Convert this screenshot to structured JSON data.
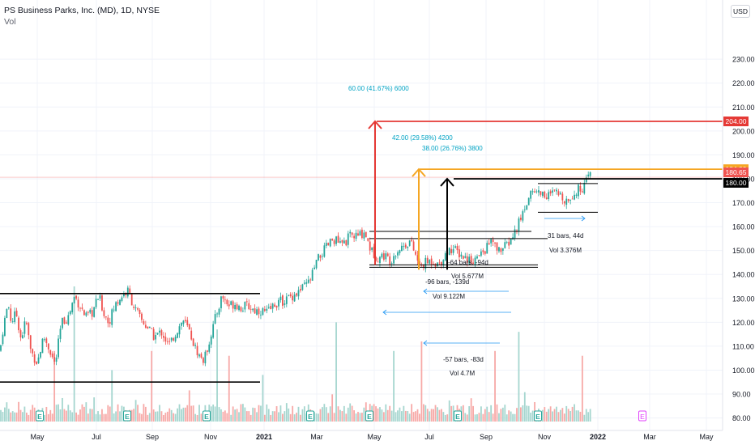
{
  "header": {
    "title": "PS Business Parks, Inc. (MD), 1D, NYSE",
    "indicator": "Vol"
  },
  "currency": "USD",
  "colors": {
    "up": "#26a69a",
    "down": "#ef5350",
    "upVol": "#a5d6cf",
    "downVol": "#f7a9a7",
    "red": "#e53935",
    "orange": "#f5a623",
    "black": "#000000",
    "blue": "#2962ff",
    "cyan": "#00a3c4",
    "earnings": "#26a69a",
    "earningsFuture": "#e040fb"
  },
  "chart_data": {
    "type": "candlestick",
    "x_axis": {
      "labels": [
        "May",
        "Jul",
        "Sep",
        "Nov",
        "2021",
        "Mar",
        "May",
        "Jul",
        "Sep",
        "Nov",
        "2022",
        "Mar",
        "May"
      ],
      "bold": [
        "2021",
        "2022"
      ]
    },
    "y_axis": {
      "ticks": [
        80,
        90,
        100,
        110,
        120,
        130,
        140,
        150,
        160,
        170,
        180,
        190,
        200,
        210,
        220,
        230
      ],
      "tick_labels": [
        "80.00",
        "90.00",
        "100.00",
        "110.00",
        "120.00",
        "130.00",
        "140.00",
        "150.00",
        "160.00",
        "170.00",
        "180.00",
        "190.00",
        "200.00",
        "210.00",
        "220.00",
        "230.00"
      ],
      "range": [
        77,
        236
      ]
    },
    "price_path": [
      [
        0,
        108
      ],
      [
        4,
        118
      ],
      [
        10,
        128
      ],
      [
        14,
        120
      ],
      [
        20,
        124
      ],
      [
        26,
        113
      ],
      [
        32,
        121
      ],
      [
        38,
        108
      ],
      [
        46,
        103
      ],
      [
        54,
        114
      ],
      [
        62,
        108
      ],
      [
        68,
        102
      ],
      [
        76,
        120
      ],
      [
        84,
        122
      ],
      [
        92,
        131
      ],
      [
        100,
        126
      ],
      [
        106,
        122
      ],
      [
        114,
        124
      ],
      [
        122,
        131
      ],
      [
        128,
        124
      ],
      [
        134,
        120
      ],
      [
        142,
        127
      ],
      [
        150,
        131
      ],
      [
        158,
        133
      ],
      [
        166,
        126
      ],
      [
        174,
        121
      ],
      [
        182,
        118
      ],
      [
        190,
        114
      ],
      [
        200,
        116
      ],
      [
        208,
        110
      ],
      [
        216,
        115
      ],
      [
        226,
        121
      ],
      [
        234,
        116
      ],
      [
        240,
        110
      ],
      [
        246,
        106
      ],
      [
        252,
        104
      ],
      [
        258,
        112
      ],
      [
        266,
        122
      ],
      [
        274,
        131
      ],
      [
        282,
        127
      ],
      [
        290,
        128
      ],
      [
        298,
        126
      ],
      [
        306,
        127
      ],
      [
        314,
        125
      ],
      [
        322,
        125
      ],
      [
        330,
        124
      ],
      [
        340,
        128
      ],
      [
        350,
        129
      ],
      [
        360,
        131
      ],
      [
        370,
        133
      ],
      [
        382,
        137
      ],
      [
        392,
        146
      ],
      [
        402,
        151
      ],
      [
        412,
        155
      ],
      [
        422,
        152
      ],
      [
        432,
        156
      ],
      [
        442,
        156
      ],
      [
        450,
        158
      ],
      [
        458,
        150
      ],
      [
        466,
        147
      ],
      [
        474,
        148
      ],
      [
        482,
        146
      ],
      [
        490,
        150
      ],
      [
        498,
        152
      ],
      [
        506,
        154
      ],
      [
        512,
        149
      ],
      [
        518,
        143
      ],
      [
        526,
        145
      ],
      [
        534,
        146
      ],
      [
        542,
        144
      ],
      [
        550,
        149
      ],
      [
        558,
        151
      ],
      [
        566,
        149
      ],
      [
        574,
        147
      ],
      [
        582,
        146
      ],
      [
        590,
        147
      ],
      [
        598,
        150
      ],
      [
        606,
        154
      ],
      [
        614,
        150
      ],
      [
        622,
        151
      ],
      [
        630,
        154
      ],
      [
        636,
        158
      ],
      [
        642,
        163
      ],
      [
        648,
        168
      ],
      [
        654,
        174
      ],
      [
        660,
        175
      ],
      [
        668,
        174
      ],
      [
        676,
        173
      ],
      [
        684,
        174
      ],
      [
        692,
        173
      ],
      [
        700,
        171
      ],
      [
        708,
        174
      ],
      [
        716,
        176
      ],
      [
        722,
        177
      ],
      [
        728,
        182
      ],
      [
        732,
        184
      ]
    ],
    "price_lines": [
      {
        "value": 204.0,
        "label": "204.00",
        "color": "#e53935"
      },
      {
        "value": 184.0,
        "label": "184.00",
        "color": "#f5a623"
      },
      {
        "value": 180.65,
        "label": "180.65",
        "color": "#ef5350"
      },
      {
        "value": 180.0,
        "label": "180.00",
        "color": "#000000"
      }
    ],
    "horizontal_levels": [
      {
        "value": 132,
        "from_date": "start",
        "to_date": "Feb 2021",
        "color": "#000000"
      },
      {
        "value": 95,
        "from_date": "start",
        "to_date": "Nov 2020",
        "color": "#000000"
      },
      {
        "value": 158,
        "from_date": "May 2021",
        "to_date": "Oct 2021",
        "color": "#000000"
      },
      {
        "value": 155,
        "from_date": "May 2021",
        "to_date": "Oct 2021",
        "color": "#000000"
      },
      {
        "value": 144,
        "from_date": "May 2021",
        "to_date": "Sep 2021",
        "color": "#000000"
      },
      {
        "value": 143,
        "from_date": "May 2021",
        "to_date": "Sep 2021",
        "color": "#000000"
      },
      {
        "value": 178,
        "from_date": "Nov 2021",
        "to_date": "Dec 2021",
        "color": "#000000"
      },
      {
        "value": 166,
        "from_date": "Nov 2021",
        "to_date": "Dec 2021",
        "color": "#000000"
      }
    ],
    "projections": [
      {
        "label": "60.00 (41.67%) 6000",
        "color": "#e53935",
        "from": 144,
        "to": 204
      },
      {
        "label": "42.00 (29.58%) 4200",
        "color": "#f5a623",
        "from": 142,
        "to": 184
      },
      {
        "label": "38.00 (26.76%) 3800",
        "color": "#000000",
        "from": 142,
        "to": 180
      }
    ],
    "annotations": [
      {
        "text": "31 bars, 44d"
      },
      {
        "text": "Vol 3.376M"
      },
      {
        "text": "-64 bars, -94d"
      },
      {
        "text": "Vol 5.677M"
      },
      {
        "text": "-96 bars, -139d"
      },
      {
        "text": "Vol 9.122M"
      },
      {
        "text": "-57 bars, -83d"
      },
      {
        "text": "Vol 4.7M"
      }
    ],
    "earnings_marker": "E"
  }
}
